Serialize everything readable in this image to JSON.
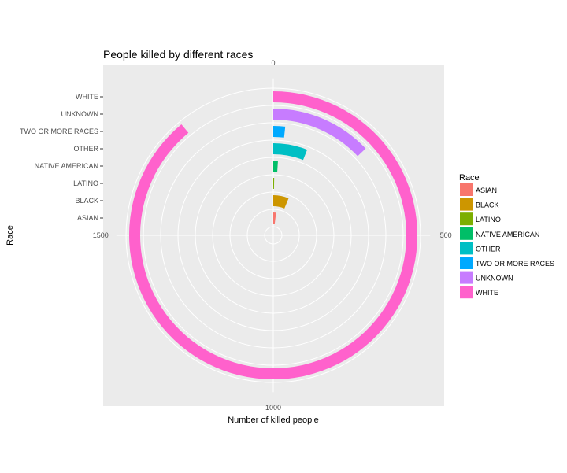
{
  "chart_data": {
    "type": "bar",
    "coord": "polar",
    "title": "People killed by different races",
    "xlabel": "Number of killed people",
    "ylabel": "Race",
    "categories": [
      "ASIAN",
      "BLACK",
      "LATINO",
      "NATIVE AMERICAN",
      "OTHER",
      "TWO OR MORE RACES",
      "UNKNOWN",
      "WHITE"
    ],
    "values": [
      40,
      125,
      5,
      20,
      120,
      35,
      260,
      1780
    ],
    "colors": [
      "#F8766D",
      "#CD9600",
      "#7CAE00",
      "#00BE67",
      "#00BFC4",
      "#00A9FF",
      "#C77CFF",
      "#FF61CC"
    ],
    "theta_max": 2000,
    "theta_ticks": [
      0,
      500,
      1000,
      1500
    ],
    "legend": {
      "title": "Race",
      "position": "right",
      "entries": [
        "ASIAN",
        "BLACK",
        "LATINO",
        "NATIVE AMERICAN",
        "OTHER",
        "TWO OR MORE RACES",
        "UNKNOWN",
        "WHITE"
      ]
    },
    "grid": true
  }
}
